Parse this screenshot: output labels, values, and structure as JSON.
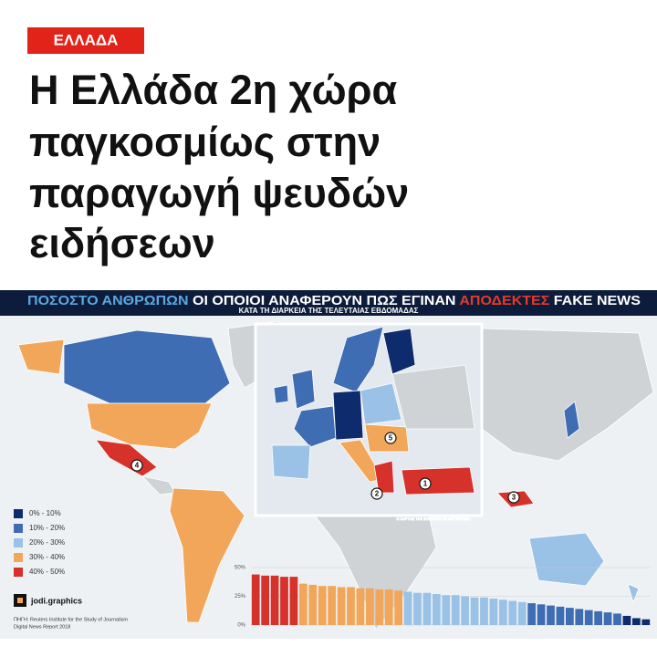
{
  "tag": "ΕΛΛΑΔΑ",
  "headline": [
    "Η Ελλάδα 2η χώρα",
    "παγκοσμίως στην",
    "παραγωγή ψευδών",
    "ειδήσεων"
  ],
  "banner": {
    "part1": "ΠΟΣΟΣΤΟ ΑΝΘΡΩΠΩΝ",
    "part2": "ΟΙ ΟΠΟΙΟΙ ΑΝΑΦΕΡΟΥΝ ΠΩΣ ΕΓΙΝΑΝ",
    "part3": "ΑΠΟΔΕΚΤΕΣ",
    "part4": "FAKE NEWS",
    "subtitle": "ΚΑΤΑ ΤΗ ΔΙΑΡΚΕΙΑ ΤΗΣ ΤΕΛΕΥΤΑΙΑΣ ΕΒΔΟΜΑΔΑΣ"
  },
  "legend": [
    {
      "label": "0% - 10%",
      "color": "#0e2b6e"
    },
    {
      "label": "10% - 20%",
      "color": "#3f6db3"
    },
    {
      "label": "20% - 30%",
      "color": "#9ac1e6"
    },
    {
      "label": "30% - 40%",
      "color": "#f2a65a"
    },
    {
      "label": "40% - 50%",
      "color": "#d6312a"
    }
  ],
  "markers": [
    "1",
    "2",
    "3",
    "4",
    "5"
  ],
  "inset_caption": "Ο ΧΑΡΤΗΣ ΤΗΣ ΕΥΡΩΠΗΣ ΣΕ ΜΕΓΕΘΥΝΣΗ",
  "brand": "jodi.graphics",
  "source": [
    "ΠΗΓΗ: Reuters Institute for the Study of Journalism",
    "Digital News Report 2018"
  ],
  "chart_data": {
    "type": "bar",
    "values": [
      44,
      43,
      43,
      42,
      42,
      36,
      35,
      34,
      34,
      33,
      33,
      32,
      32,
      31,
      31,
      30,
      29,
      28,
      28,
      27,
      26,
      26,
      25,
      24,
      24,
      23,
      22,
      21,
      20,
      19,
      18,
      17,
      16,
      15,
      14,
      13,
      12,
      11,
      10,
      8,
      6,
      5
    ],
    "colors": [
      "#d6312a",
      "#d6312a",
      "#d6312a",
      "#d6312a",
      "#d6312a",
      "#f2a65a",
      "#f2a65a",
      "#f2a65a",
      "#f2a65a",
      "#f2a65a",
      "#f2a65a",
      "#f2a65a",
      "#f2a65a",
      "#f2a65a",
      "#f2a65a",
      "#f2a65a",
      "#9ac1e6",
      "#9ac1e6",
      "#9ac1e6",
      "#9ac1e6",
      "#9ac1e6",
      "#9ac1e6",
      "#9ac1e6",
      "#9ac1e6",
      "#9ac1e6",
      "#9ac1e6",
      "#9ac1e6",
      "#9ac1e6",
      "#9ac1e6",
      "#3f6db3",
      "#3f6db3",
      "#3f6db3",
      "#3f6db3",
      "#3f6db3",
      "#3f6db3",
      "#3f6db3",
      "#3f6db3",
      "#3f6db3",
      "#3f6db3",
      "#0e2b6e",
      "#0e2b6e",
      "#0e2b6e"
    ],
    "ylim": [
      0,
      50
    ],
    "yticks": [
      {
        "value": 0,
        "label": "0%"
      },
      {
        "value": 25,
        "label": "25%"
      },
      {
        "value": 50,
        "label": "50%"
      }
    ],
    "grid": true
  }
}
